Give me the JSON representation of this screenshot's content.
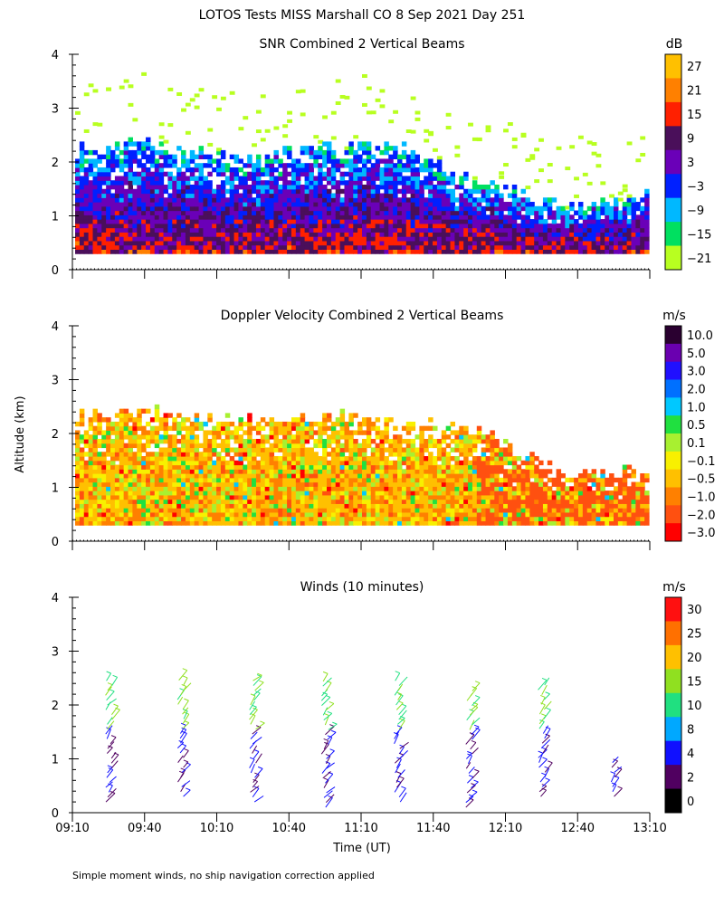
{
  "title": "LOTOS Tests MISS Marshall CO   8 Sep 2021 Day 251",
  "footnote": "Simple moment winds, no ship navigation correction applied",
  "chart_data": [
    {
      "type": "heatmap",
      "title": "SNR Combined 2 Vertical Beams",
      "xlabel": "",
      "ylabel": "",
      "x_range": [
        "09:10",
        "13:10"
      ],
      "ylim": [
        0,
        4
      ],
      "y_ticks": [
        "0",
        "1",
        "2",
        "3",
        "4"
      ],
      "colorbar": {
        "unit": "dB",
        "labels": [
          "27",
          "21",
          "15",
          "9",
          "3",
          "−3",
          "−9",
          "−15",
          "−21"
        ],
        "colors": [
          "#ffc000",
          "#ff8000",
          "#ff2000",
          "#4a0f5a",
          "#6a00b8",
          "#0020ff",
          "#00b8ff",
          "#00e060",
          "#b8ff20"
        ]
      },
      "series": [
        {
          "name": "",
          "values": [
            [
              0.3,
              2.2,
              -5
            ],
            [
              0.3,
              2.3,
              -7
            ],
            [
              0.3,
              2.0,
              -4
            ],
            [
              0.3,
              2.3,
              -8
            ],
            [
              0.3,
              2.2,
              -9
            ],
            [
              0.3,
              1.6,
              -15
            ],
            [
              0.3,
              1.1,
              -3
            ],
            [
              0.3,
              1.4,
              -8
            ]
          ]
        }
      ]
    },
    {
      "type": "heatmap",
      "title": "Doppler Velocity Combined 2 Vertical Beams",
      "ylabel": "Altitude (km)",
      "x_range": [
        "09:10",
        "13:10"
      ],
      "ylim": [
        0,
        4
      ],
      "y_ticks": [
        "0",
        "1",
        "2",
        "3",
        "4"
      ],
      "colorbar": {
        "unit": "m/s",
        "labels": [
          "10.0",
          "5.0",
          "3.0",
          "2.0",
          "1.0",
          "0.5",
          "0.1",
          "−0.1",
          "−0.5",
          "−1.0",
          "−2.0",
          "−3.0"
        ],
        "colors": [
          "#2a0030",
          "#6a00b0",
          "#2010ff",
          "#0070ff",
          "#00c8ff",
          "#20e040",
          "#a8f030",
          "#f8f000",
          "#ffc000",
          "#ff8000",
          "#ff5010",
          "#ff0000"
        ]
      },
      "series": [
        {
          "name": "",
          "values": [
            [
              0.3,
              2.3,
              -0.6
            ],
            [
              0.3,
              2.4,
              -0.8
            ],
            [
              0.3,
              2.2,
              -0.5
            ],
            [
              0.3,
              2.3,
              -0.7
            ],
            [
              0.3,
              2.2,
              -0.9
            ],
            [
              0.3,
              2.0,
              -1.2
            ],
            [
              0.3,
              1.2,
              -1.5
            ],
            [
              0.3,
              1.3,
              -1.3
            ]
          ]
        }
      ]
    },
    {
      "type": "scatter",
      "title": "Winds (10 minutes)",
      "xlabel": "Time (UT)",
      "x_ticks": [
        "09:10",
        "09:40",
        "10:10",
        "10:40",
        "11:10",
        "11:40",
        "12:10",
        "12:40",
        "13:10"
      ],
      "ylim": [
        0,
        4
      ],
      "y_ticks": [
        "0",
        "1",
        "2",
        "3",
        "4"
      ],
      "colorbar": {
        "unit": "m/s",
        "labels": [
          "30",
          "25",
          "20",
          "15",
          "10",
          "8",
          "4",
          "2",
          "0"
        ],
        "colors": [
          "#ff1010",
          "#ff7000",
          "#ffc000",
          "#90e020",
          "#20e080",
          "#00a8ff",
          "#1010ff",
          "#500060",
          "#000000"
        ]
      },
      "series": [
        {
          "name": "",
          "values": [
            {
              "time": "09:25",
              "alt_top": 2.5,
              "alt_bottom": 0.2
            },
            {
              "time": "09:55",
              "alt_top": 2.5,
              "alt_bottom": 0.3
            },
            {
              "time": "10:25",
              "alt_top": 2.5,
              "alt_bottom": 0.2
            },
            {
              "time": "10:55",
              "alt_top": 2.5,
              "alt_bottom": 0.1
            },
            {
              "time": "11:25",
              "alt_top": 2.5,
              "alt_bottom": 0.2
            },
            {
              "time": "11:55",
              "alt_top": 2.3,
              "alt_bottom": 0.1
            },
            {
              "time": "12:25",
              "alt_top": 2.4,
              "alt_bottom": 0.3
            },
            {
              "time": "12:55",
              "alt_top": 1.0,
              "alt_bottom": 0.3
            }
          ]
        }
      ]
    }
  ]
}
